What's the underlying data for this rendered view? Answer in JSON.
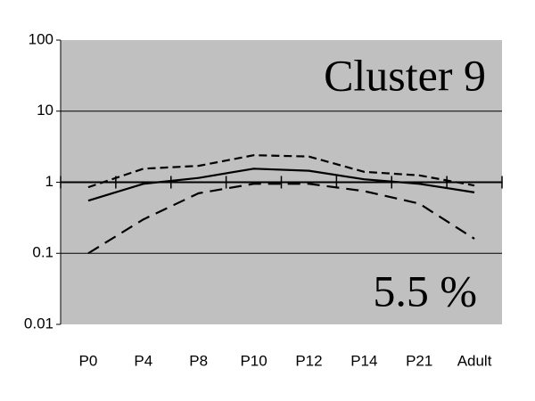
{
  "chart_data": {
    "type": "line",
    "annotations": [
      "Cluster 9",
      "5.5 %"
    ],
    "categories": [
      "P0",
      "P4",
      "P8",
      "P10",
      "P12",
      "P14",
      "P21",
      "Adult"
    ],
    "series": [
      {
        "color": "#000000",
        "dash": "solid",
        "values": [
          0.55,
          0.95,
          1.15,
          1.55,
          1.45,
          1.1,
          0.95,
          0.72
        ]
      },
      {
        "color": "#000000",
        "dash": "short",
        "values": [
          0.85,
          1.55,
          1.7,
          2.4,
          2.3,
          1.4,
          1.25,
          0.9
        ]
      },
      {
        "color": "#000000",
        "dash": "long",
        "values": [
          0.1,
          0.3,
          0.7,
          0.95,
          0.95,
          0.75,
          0.5,
          0.16
        ]
      }
    ],
    "ylim": [
      0.01,
      100
    ],
    "yticks": [
      0.01,
      0.1,
      1,
      10,
      100
    ],
    "log_y": true,
    "grid": true,
    "plot_background": "#c0c0c0"
  }
}
